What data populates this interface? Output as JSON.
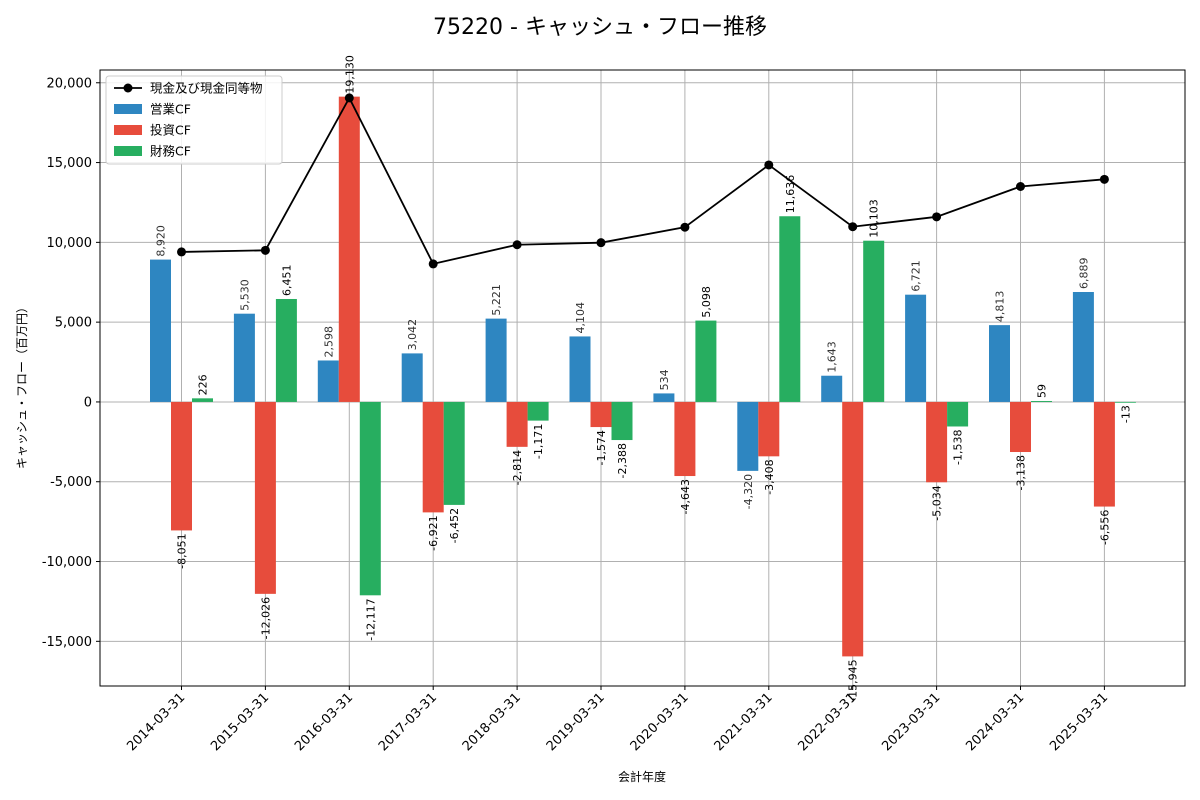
{
  "chart_data": {
    "type": "bar",
    "title": "75220 - キャッシュ・フロー推移",
    "xlabel": "会計年度",
    "ylabel": "キャッシュ・フロー（百万円）",
    "ylim": [
      -17800,
      20800
    ],
    "yticks": [
      -15000,
      -10000,
      -5000,
      0,
      5000,
      10000,
      15000,
      20000
    ],
    "ytick_labels": [
      "-15,000",
      "-10,000",
      "-5,000",
      "0",
      "5,000",
      "10,000",
      "15,000",
      "20,000"
    ],
    "grid": true,
    "legend_position": "top-left",
    "categories": [
      "2014-03-31",
      "2015-03-31",
      "2016-03-31",
      "2017-03-31",
      "2018-03-31",
      "2019-03-31",
      "2020-03-31",
      "2021-03-31",
      "2022-03-31",
      "2023-03-31",
      "2024-03-31",
      "2025-03-31"
    ],
    "series": [
      {
        "name": "営業CF",
        "type": "bar",
        "color": "#2e86c1",
        "values": [
          8920,
          5530,
          2598,
          3042,
          5221,
          4104,
          534,
          -4320,
          1643,
          6721,
          4813,
          6889
        ],
        "labels": [
          "8,920",
          "5,530",
          "2,598",
          "3,042",
          "5,221",
          "4,104",
          "534",
          "-4,320",
          "1,643",
          "6,721",
          "4,813",
          "6,889"
        ]
      },
      {
        "name": "投資CF",
        "type": "bar",
        "color": "#e74c3c",
        "values": [
          -8051,
          -12026,
          19130,
          -6921,
          -2814,
          -1574,
          -4643,
          -3408,
          -15945,
          -5034,
          -3138,
          -6556
        ],
        "labels": [
          "-8,051",
          "-12,026",
          "19,130",
          "-6,921",
          "-2,814",
          "-1,574",
          "-4,643",
          "-3,408",
          "-15,945",
          "-5,034",
          "-3,138",
          "-6,556"
        ]
      },
      {
        "name": "財務CF",
        "type": "bar",
        "color": "#27ae60",
        "values": [
          226,
          6451,
          -12117,
          -6452,
          -1171,
          -2388,
          5098,
          11636,
          10103,
          -1538,
          59,
          -13
        ],
        "labels": [
          "226",
          "6,451",
          "-12,117",
          "-6,452",
          "-1,171",
          "-2,388",
          "5,098",
          "11,636",
          "10,103",
          "-1,538",
          "59",
          "-13"
        ]
      },
      {
        "name": "現金及び現金同等物",
        "type": "line",
        "color": "#000000",
        "values": [
          9400,
          9500,
          19050,
          8650,
          9850,
          9980,
          10950,
          14850,
          10980,
          11600,
          13500,
          13950
        ]
      }
    ]
  }
}
